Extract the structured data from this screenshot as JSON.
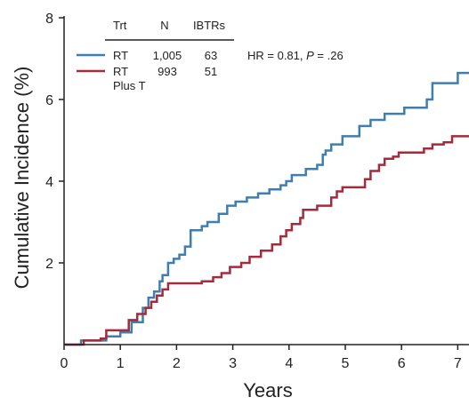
{
  "chart_data": {
    "type": "line",
    "xlabel": "Years",
    "ylabel": "Cumulative Incidence (%)",
    "xlim": [
      0,
      7.2
    ],
    "ylim": [
      0,
      8
    ],
    "x_ticks": [
      "0",
      "1",
      "2",
      "3",
      "4",
      "5",
      "6",
      "7"
    ],
    "y_ticks": [
      "2",
      "4",
      "6",
      "8"
    ],
    "legend": {
      "headers": {
        "trt": "Trt",
        "n": "N",
        "events": "IBTRs"
      },
      "rows": [
        {
          "trt": "RT",
          "trt_line2": "",
          "n": "1,005",
          "events": "63"
        },
        {
          "trt": "RT",
          "trt_line2": "Plus T",
          "n": "993",
          "events": "51"
        }
      ],
      "hr_text": "HR = 0.81, ",
      "p_label": "P",
      "p_value": " = .26"
    },
    "series": [
      {
        "name": "RT",
        "color": "#3f7fb0",
        "points": [
          [
            0,
            0
          ],
          [
            0.3,
            0
          ],
          [
            0.3,
            0.1
          ],
          [
            0.6,
            0.1
          ],
          [
            0.75,
            0.2
          ],
          [
            1.0,
            0.3
          ],
          [
            1.2,
            0.55
          ],
          [
            1.4,
            0.9
          ],
          [
            1.5,
            1.15
          ],
          [
            1.6,
            1.3
          ],
          [
            1.7,
            1.55
          ],
          [
            1.75,
            1.7
          ],
          [
            1.85,
            2.0
          ],
          [
            1.95,
            2.1
          ],
          [
            2.05,
            2.2
          ],
          [
            2.15,
            2.4
          ],
          [
            2.25,
            2.8
          ],
          [
            2.45,
            2.9
          ],
          [
            2.55,
            3.0
          ],
          [
            2.75,
            3.2
          ],
          [
            2.9,
            3.4
          ],
          [
            3.05,
            3.5
          ],
          [
            3.25,
            3.6
          ],
          [
            3.45,
            3.7
          ],
          [
            3.65,
            3.8
          ],
          [
            3.85,
            3.9
          ],
          [
            3.95,
            4.0
          ],
          [
            4.05,
            4.15
          ],
          [
            4.3,
            4.3
          ],
          [
            4.5,
            4.4
          ],
          [
            4.6,
            4.65
          ],
          [
            4.65,
            4.75
          ],
          [
            4.75,
            4.9
          ],
          [
            4.95,
            5.1
          ],
          [
            5.25,
            5.35
          ],
          [
            5.45,
            5.5
          ],
          [
            5.7,
            5.65
          ],
          [
            6.05,
            5.8
          ],
          [
            6.45,
            6.0
          ],
          [
            6.55,
            6.4
          ],
          [
            6.9,
            6.4
          ],
          [
            7.0,
            6.65
          ],
          [
            7.2,
            6.65
          ]
        ]
      },
      {
        "name": "RT Plus T",
        "color": "#a52a3a",
        "points": [
          [
            0,
            0
          ],
          [
            0.35,
            0
          ],
          [
            0.35,
            0.1
          ],
          [
            0.65,
            0.15
          ],
          [
            0.75,
            0.35
          ],
          [
            1.0,
            0.35
          ],
          [
            1.15,
            0.6
          ],
          [
            1.3,
            0.75
          ],
          [
            1.45,
            0.9
          ],
          [
            1.55,
            1.05
          ],
          [
            1.65,
            1.2
          ],
          [
            1.75,
            1.35
          ],
          [
            1.85,
            1.5
          ],
          [
            2.0,
            1.5
          ],
          [
            2.45,
            1.55
          ],
          [
            2.65,
            1.65
          ],
          [
            2.8,
            1.75
          ],
          [
            2.95,
            1.9
          ],
          [
            3.15,
            2.0
          ],
          [
            3.3,
            2.15
          ],
          [
            3.5,
            2.3
          ],
          [
            3.7,
            2.45
          ],
          [
            3.85,
            2.65
          ],
          [
            3.95,
            2.8
          ],
          [
            4.05,
            2.95
          ],
          [
            4.2,
            3.1
          ],
          [
            4.25,
            3.3
          ],
          [
            4.5,
            3.4
          ],
          [
            4.75,
            3.6
          ],
          [
            4.85,
            3.75
          ],
          [
            4.95,
            3.85
          ],
          [
            5.35,
            4.05
          ],
          [
            5.45,
            4.25
          ],
          [
            5.6,
            4.4
          ],
          [
            5.7,
            4.55
          ],
          [
            5.85,
            4.6
          ],
          [
            5.95,
            4.7
          ],
          [
            6.4,
            4.8
          ],
          [
            6.55,
            4.9
          ],
          [
            6.75,
            4.95
          ],
          [
            6.9,
            5.1
          ],
          [
            7.2,
            5.1
          ]
        ]
      }
    ]
  }
}
